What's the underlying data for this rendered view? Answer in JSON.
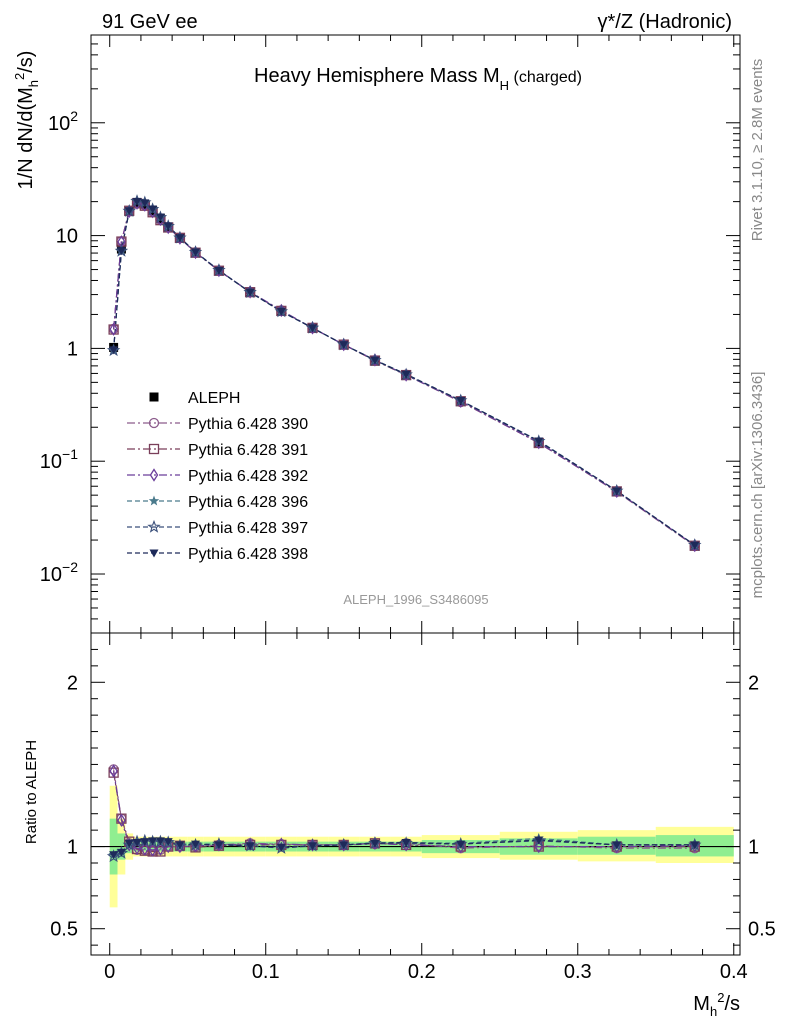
{
  "header": {
    "left": "91 GeV ee",
    "right": "γ*/Z (Hadronic)"
  },
  "side": {
    "rivet": "Rivet 3.1.10, ≥ 2.8M events",
    "mcplots": "mcplots.cern.ch [arXiv:1306.3436]"
  },
  "colors": {
    "data": "#000000",
    "band_inner": "#90ee90",
    "band_outer": "#ffff99"
  },
  "chart_data": [
    {
      "type": "line",
      "title": "Heavy Hemisphere Mass M_H (charged)",
      "xlabel": "M_h^2/s",
      "ylabel": "1/N dN/d(M_h^2/s)",
      "yscale": "log",
      "xlim": [
        -0.012,
        0.404
      ],
      "ylim": [
        0.003,
        600
      ],
      "x_ticks": [
        "0",
        "0.1",
        "0.2",
        "0.3",
        "0.4"
      ],
      "y_ticks": [
        "10^-2",
        "10^-1",
        "1",
        "10",
        "10^2"
      ],
      "legend": {
        "position": "middle-left"
      },
      "watermark": "ALEPH_1996_S3486095",
      "x": [
        0.0025,
        0.0075,
        0.0125,
        0.0175,
        0.0225,
        0.0275,
        0.0325,
        0.0375,
        0.045,
        0.055,
        0.07,
        0.09,
        0.11,
        0.13,
        0.15,
        0.17,
        0.19,
        0.225,
        0.275,
        0.325,
        0.375
      ],
      "series": [
        {
          "name": "ALEPH",
          "color": "#000000",
          "marker": "filled-square",
          "values": [
            1.02,
            7.6,
            16.3,
            19.6,
            18.9,
            16.6,
            14.1,
            11.8,
            9.5,
            7.05,
            4.85,
            3.13,
            2.14,
            1.51,
            1.07,
            0.77,
            0.575,
            0.34,
            0.145,
            0.054,
            0.0178
          ]
        },
        {
          "name": "Pythia 6.428 390",
          "color": "#8c5c8c",
          "marker": "open-circle",
          "dash": "dashdot",
          "values": [
            1.49,
            8.9,
            16.5,
            19.2,
            18.5,
            16.2,
            13.8,
            11.9,
            9.5,
            7.1,
            4.9,
            3.17,
            2.17,
            1.51,
            1.08,
            0.78,
            0.585,
            0.335,
            0.146,
            0.0535,
            0.0177
          ]
        },
        {
          "name": "Pythia 6.428 391",
          "color": "#7a3f5a",
          "marker": "open-square",
          "dash": "dashdot",
          "values": [
            1.47,
            8.85,
            16.6,
            19.3,
            18.4,
            16.1,
            13.7,
            11.8,
            9.55,
            7.05,
            4.88,
            3.15,
            2.15,
            1.52,
            1.08,
            0.78,
            0.58,
            0.34,
            0.145,
            0.054,
            0.0178
          ]
        },
        {
          "name": "Pythia 6.428 392",
          "color": "#6a3d9a",
          "marker": "open-diamond",
          "dash": "dashdot",
          "values": [
            1.48,
            8.8,
            16.4,
            19.4,
            18.6,
            16.3,
            13.9,
            11.8,
            9.5,
            7.08,
            4.9,
            3.17,
            2.17,
            1.52,
            1.08,
            0.79,
            0.58,
            0.34,
            0.146,
            0.054,
            0.0179
          ]
        },
        {
          "name": "Pythia 6.428 396",
          "color": "#4a7a8c",
          "marker": "filled-star",
          "dash": "dashed",
          "values": [
            0.97,
            7.4,
            16.4,
            20.1,
            19.5,
            17.2,
            14.6,
            12.2,
            9.6,
            7.15,
            4.92,
            3.13,
            2.13,
            1.52,
            1.08,
            0.79,
            0.59,
            0.346,
            0.152,
            0.0545,
            0.018
          ]
        },
        {
          "name": "Pythia 6.428 397",
          "color": "#3a4f7a",
          "marker": "open-star",
          "dash": "dashed",
          "values": [
            0.96,
            7.3,
            16.5,
            20.2,
            19.6,
            17.1,
            14.5,
            12.1,
            9.55,
            7.12,
            4.93,
            3.14,
            2.12,
            1.52,
            1.08,
            0.785,
            0.585,
            0.345,
            0.15,
            0.0545,
            0.018
          ]
        },
        {
          "name": "Pythia 6.428 398",
          "color": "#1e2a5a",
          "marker": "filled-triangle-down",
          "dash": "dashed",
          "values": [
            0.97,
            7.35,
            16.6,
            20.1,
            19.5,
            17.2,
            14.6,
            12.2,
            9.6,
            7.15,
            4.9,
            3.15,
            2.13,
            1.52,
            1.08,
            0.787,
            0.59,
            0.345,
            0.151,
            0.0545,
            0.018
          ]
        }
      ]
    },
    {
      "type": "line",
      "xlabel": "M_h^2/s",
      "ylabel": "Ratio to ALEPH",
      "xlim": [
        -0.012,
        0.404
      ],
      "ylim": [
        0.34,
        2.3
      ],
      "x_ticks": [
        "0",
        "0.1",
        "0.2",
        "0.3",
        "0.4"
      ],
      "y_ticks": [
        "0.5",
        "1",
        "2"
      ],
      "reference_line": 1,
      "bins": [
        [
          0,
          0.005
        ],
        [
          0.005,
          0.01
        ],
        [
          0.01,
          0.015
        ],
        [
          0.015,
          0.02
        ],
        [
          0.02,
          0.025
        ],
        [
          0.025,
          0.03
        ],
        [
          0.03,
          0.035
        ],
        [
          0.035,
          0.04
        ],
        [
          0.04,
          0.05
        ],
        [
          0.05,
          0.06
        ],
        [
          0.06,
          0.08
        ],
        [
          0.08,
          0.1
        ],
        [
          0.1,
          0.12
        ],
        [
          0.12,
          0.14
        ],
        [
          0.14,
          0.16
        ],
        [
          0.16,
          0.18
        ],
        [
          0.18,
          0.2
        ],
        [
          0.2,
          0.25
        ],
        [
          0.25,
          0.3
        ],
        [
          0.3,
          0.35
        ],
        [
          0.35,
          0.4
        ]
      ],
      "band_inner": [
        [
          0.83,
          1.17
        ],
        [
          0.92,
          1.08
        ],
        [
          0.96,
          1.04
        ],
        [
          0.97,
          1.03
        ],
        [
          0.97,
          1.03
        ],
        [
          0.97,
          1.03
        ],
        [
          0.97,
          1.03
        ],
        [
          0.97,
          1.03
        ],
        [
          0.97,
          1.03
        ],
        [
          0.97,
          1.03
        ],
        [
          0.97,
          1.03
        ],
        [
          0.97,
          1.03
        ],
        [
          0.97,
          1.03
        ],
        [
          0.97,
          1.03
        ],
        [
          0.97,
          1.03
        ],
        [
          0.97,
          1.03
        ],
        [
          0.97,
          1.03
        ],
        [
          0.96,
          1.04
        ],
        [
          0.95,
          1.05
        ],
        [
          0.95,
          1.06
        ],
        [
          0.94,
          1.07
        ]
      ],
      "band_outer": [
        [
          0.63,
          1.37
        ],
        [
          0.83,
          1.17
        ],
        [
          0.92,
          1.08
        ],
        [
          0.94,
          1.06
        ],
        [
          0.94,
          1.06
        ],
        [
          0.94,
          1.06
        ],
        [
          0.94,
          1.06
        ],
        [
          0.94,
          1.06
        ],
        [
          0.94,
          1.06
        ],
        [
          0.94,
          1.06
        ],
        [
          0.94,
          1.06
        ],
        [
          0.94,
          1.06
        ],
        [
          0.94,
          1.06
        ],
        [
          0.94,
          1.06
        ],
        [
          0.94,
          1.06
        ],
        [
          0.94,
          1.06
        ],
        [
          0.94,
          1.06
        ],
        [
          0.93,
          1.07
        ],
        [
          0.92,
          1.09
        ],
        [
          0.91,
          1.1
        ],
        [
          0.9,
          1.12
        ]
      ],
      "series": [
        {
          "name": "Pythia 6.428 390",
          "values": [
            1.47,
            1.17,
            1.02,
            0.98,
            0.98,
            0.975,
            0.98,
            1.0,
            1.0,
            1.0,
            1.01,
            1.02,
            1.015,
            1.01,
            1.01,
            1.015,
            1.02,
            0.99,
            1.005,
            0.99,
            0.99
          ]
        },
        {
          "name": "Pythia 6.428 391",
          "values": [
            1.45,
            1.17,
            1.03,
            0.985,
            0.975,
            0.97,
            0.97,
            1.0,
            1.005,
            0.995,
            1.005,
            1.01,
            1.01,
            1.01,
            1.01,
            1.02,
            1.01,
            1.0,
            1.0,
            1.0,
            1.0
          ]
        },
        {
          "name": "Pythia 6.428 392",
          "values": [
            1.46,
            1.16,
            1.01,
            0.99,
            0.985,
            0.98,
            0.985,
            1.0,
            1.0,
            1.005,
            1.01,
            1.015,
            1.015,
            1.01,
            1.01,
            1.02,
            1.01,
            1.0,
            1.0,
            1.0,
            1.005
          ]
        },
        {
          "name": "Pythia 6.428 396",
          "values": [
            0.95,
            0.97,
            1.01,
            1.025,
            1.03,
            1.035,
            1.035,
            1.03,
            1.01,
            1.015,
            1.015,
            1.0,
            0.995,
            1.005,
            1.01,
            1.025,
            1.025,
            1.02,
            1.05,
            1.01,
            1.01
          ]
        },
        {
          "name": "Pythia 6.428 397",
          "values": [
            0.94,
            0.96,
            1.01,
            1.03,
            1.035,
            1.03,
            1.03,
            1.025,
            1.005,
            1.01,
            1.015,
            1.005,
            0.99,
            1.005,
            1.01,
            1.02,
            1.02,
            1.015,
            1.035,
            1.01,
            1.01
          ]
        },
        {
          "name": "Pythia 6.428 398",
          "values": [
            0.95,
            0.965,
            1.02,
            1.025,
            1.03,
            1.035,
            1.035,
            1.03,
            1.01,
            1.015,
            1.01,
            1.005,
            0.995,
            1.005,
            1.01,
            1.02,
            1.025,
            1.015,
            1.04,
            1.01,
            1.01
          ]
        }
      ]
    }
  ]
}
